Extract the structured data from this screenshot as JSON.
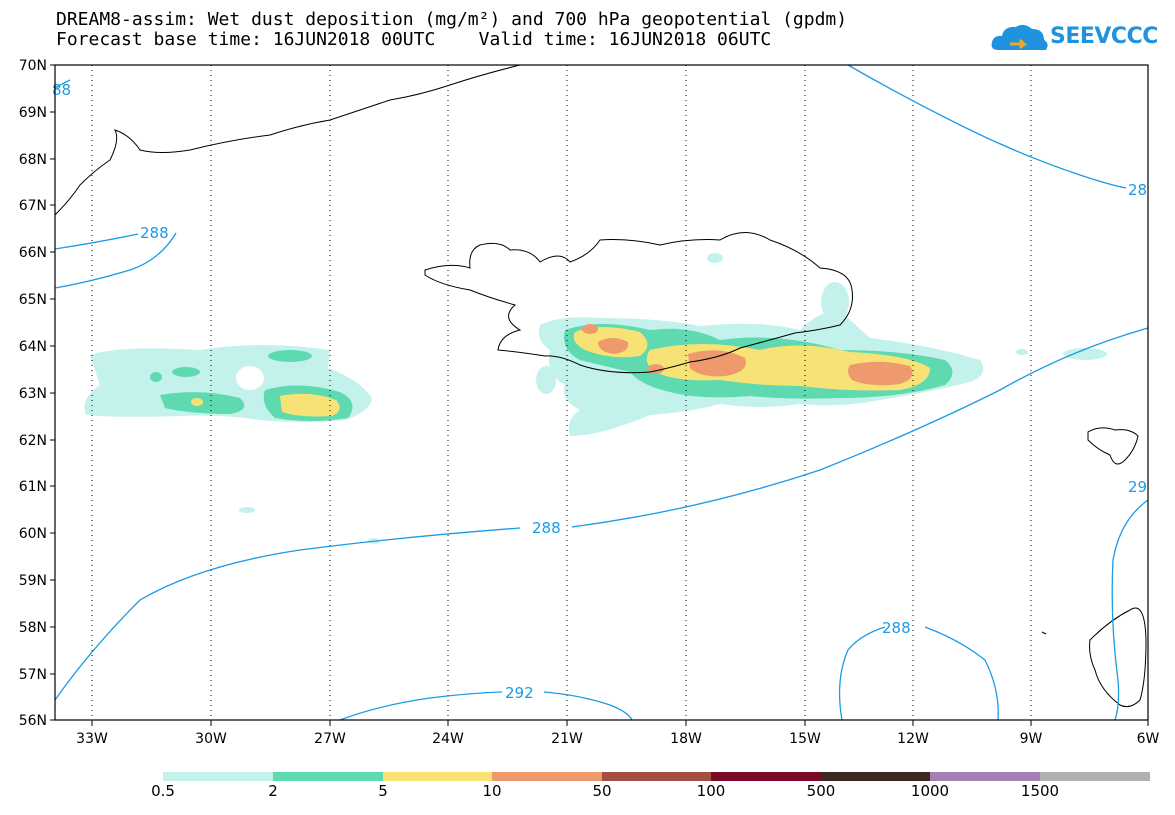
{
  "title": {
    "line1": "DREAM8-assim: Wet dust deposition (mg/m²) and 700 hPa geopotential (gpdm)",
    "line2": "Forecast base time: 16JUN2018 00UTC    Valid time: 16JUN2018 06UTC"
  },
  "logo": {
    "text": "SEEVCCC",
    "icon": "cloud-logo-icon",
    "color": "#1f93e0"
  },
  "map": {
    "lat_ticks": [
      "70N",
      "69N",
      "68N",
      "67N",
      "66N",
      "65N",
      "64N",
      "63N",
      "62N",
      "61N",
      "60N",
      "59N",
      "58N",
      "57N",
      "56N"
    ],
    "lon_ticks": [
      "33W",
      "30W",
      "27W",
      "24W",
      "21W",
      "18W",
      "15W",
      "12W",
      "9W",
      "6W"
    ],
    "contour_color": "#1a9be6",
    "contour_labels": [
      "88",
      "288",
      "28",
      "288",
      "29",
      "288",
      "292"
    ],
    "regions": [
      "Greenland",
      "Iceland",
      "Faroe Islands",
      "Scotland"
    ]
  },
  "colorbar": {
    "labels": [
      "0.5",
      "2",
      "5",
      "10",
      "50",
      "100",
      "500",
      "1000",
      "1500"
    ],
    "colors": [
      "#c3f2ec",
      "#5fd9b0",
      "#f7e276",
      "#ef9a6c",
      "#a24f41",
      "#7a0a25",
      "#3b2a1f",
      "#a67fb3",
      "#b0b0b0"
    ]
  }
}
